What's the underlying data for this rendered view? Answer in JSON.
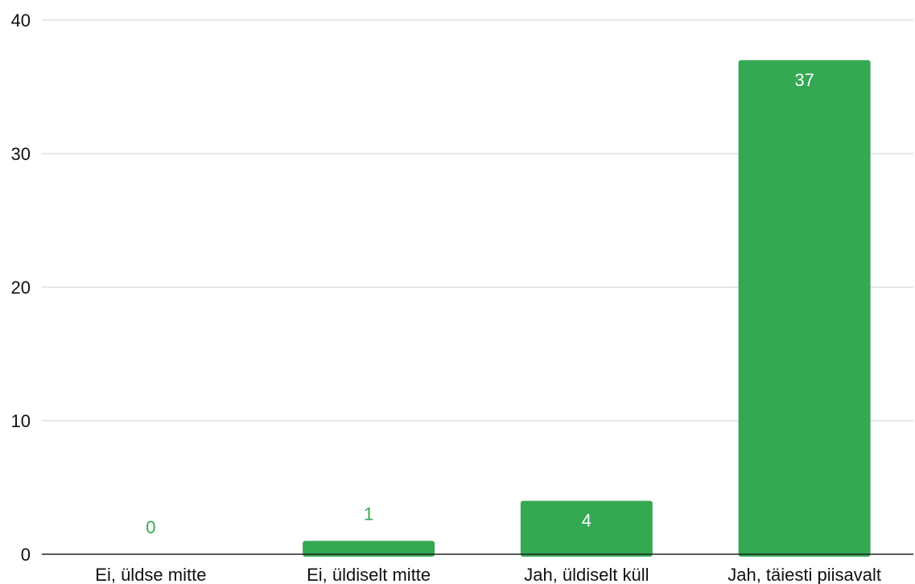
{
  "colors": {
    "bar": "#34a853",
    "gridline": "#cccccc",
    "axis": "#222222",
    "label_inside": "#ffffff",
    "label_outside": "#34a853",
    "text": "#111111"
  },
  "chart_data": {
    "type": "bar",
    "title": "",
    "xlabel": "",
    "ylabel": "",
    "categories": [
      "Ei, üldse mitte",
      "Ei, üldiselt mitte",
      "Jah, üldiselt küll",
      "Jah, täiesti piisavalt"
    ],
    "values": [
      0,
      1,
      4,
      37
    ],
    "data_labels": [
      "0",
      "1",
      "4",
      "37"
    ],
    "ylim": [
      0,
      40
    ],
    "yticks": [
      0,
      10,
      20,
      30,
      40
    ],
    "ytick_labels": [
      "0",
      "10",
      "20",
      "30",
      "40"
    ],
    "grid": true,
    "legend": "none"
  }
}
